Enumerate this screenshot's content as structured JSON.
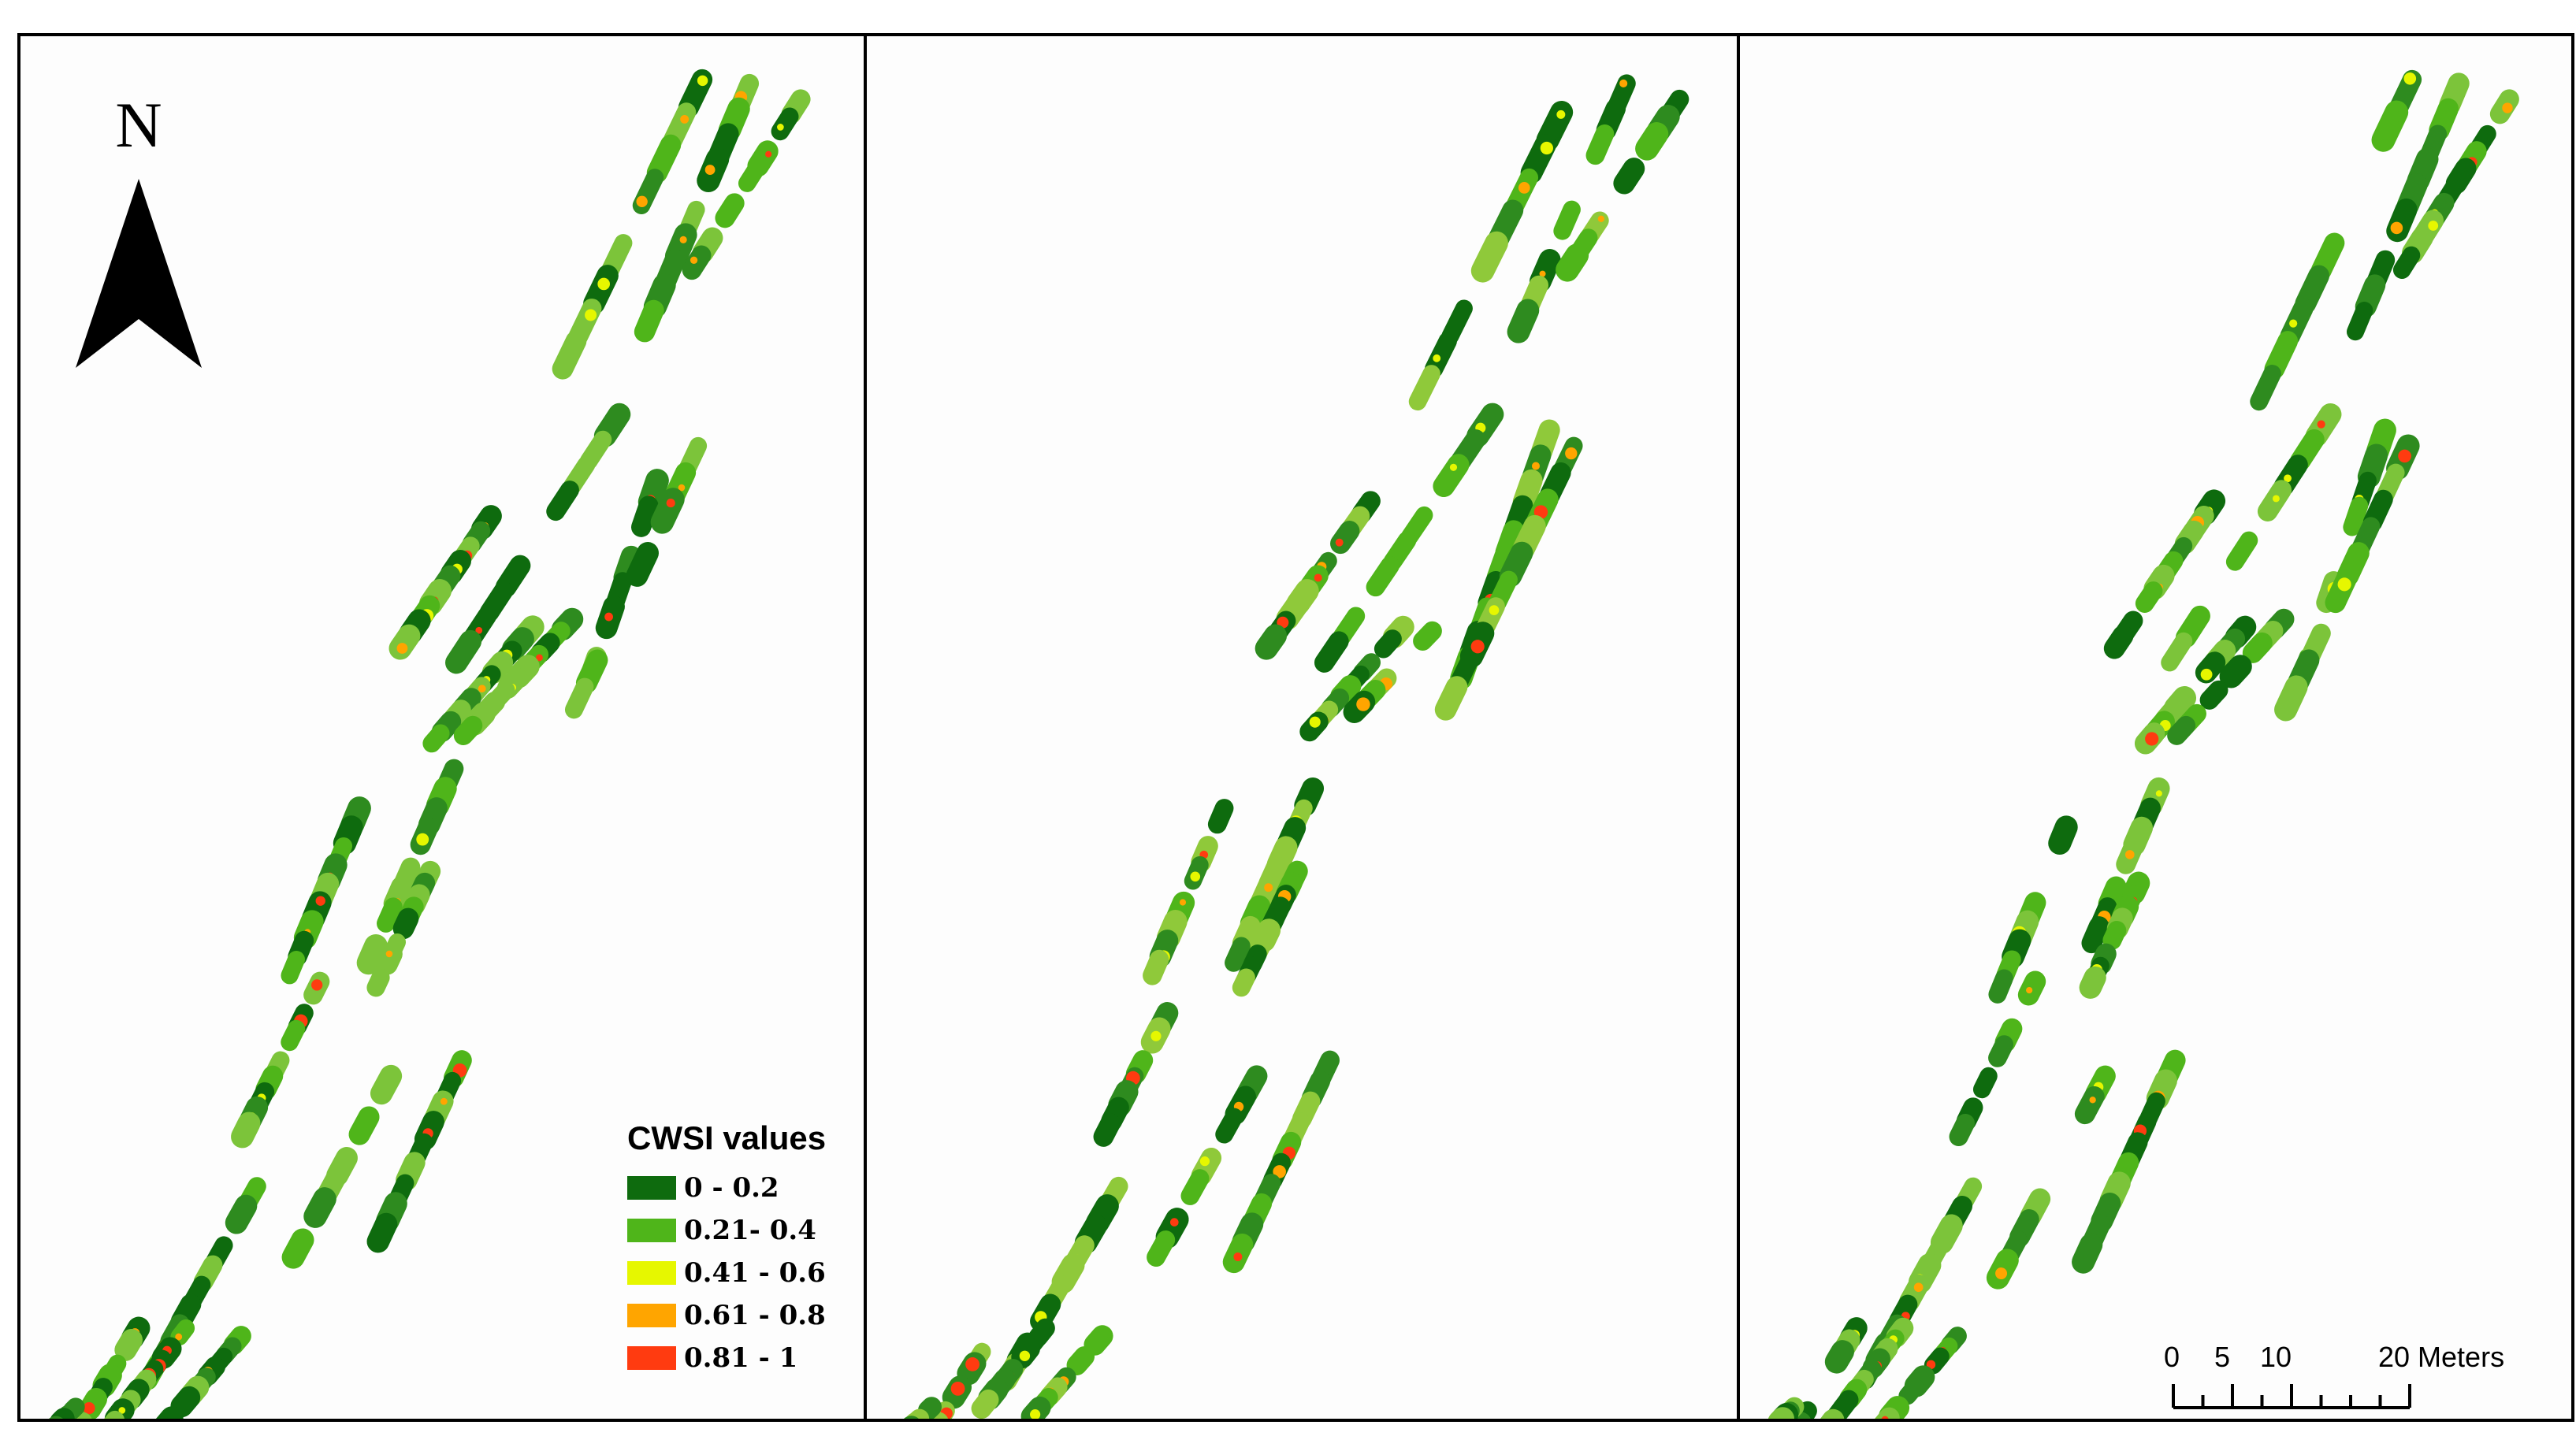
{
  "north_label": "N",
  "legend": {
    "title": "CWSI values",
    "items": [
      {
        "label": "0 - 0.2",
        "color": "#0e6b0e"
      },
      {
        "label": "0.21- 0.4",
        "color": "#4fb51a"
      },
      {
        "label": "0.41 - 0.6",
        "color": "#e6f700"
      },
      {
        "label": "0.61 - 0.8",
        "color": "#ffa500"
      },
      {
        "label": "0.81 - 1",
        "color": "#ff3b10"
      }
    ]
  },
  "scale_bar": {
    "ticks": [
      {
        "value": 0,
        "label": "0"
      },
      {
        "value": 5,
        "label": "5"
      },
      {
        "value": 10,
        "label": "10"
      },
      {
        "value": 20,
        "label": "20 Meters"
      }
    ],
    "max": 20
  },
  "panels": [
    {
      "id": "panel-1",
      "palette": [
        "#0e6b0e",
        "#2e8b1f",
        "#4fb51a",
        "#7cc43a"
      ]
    },
    {
      "id": "panel-2",
      "palette": [
        "#0e6b0e",
        "#2e8b1f",
        "#4fb51a",
        "#8fc93a"
      ]
    },
    {
      "id": "panel-3",
      "palette": [
        "#0e6b0e",
        "#2e8b1f",
        "#4fb51a",
        "#7cc43a"
      ]
    }
  ]
}
